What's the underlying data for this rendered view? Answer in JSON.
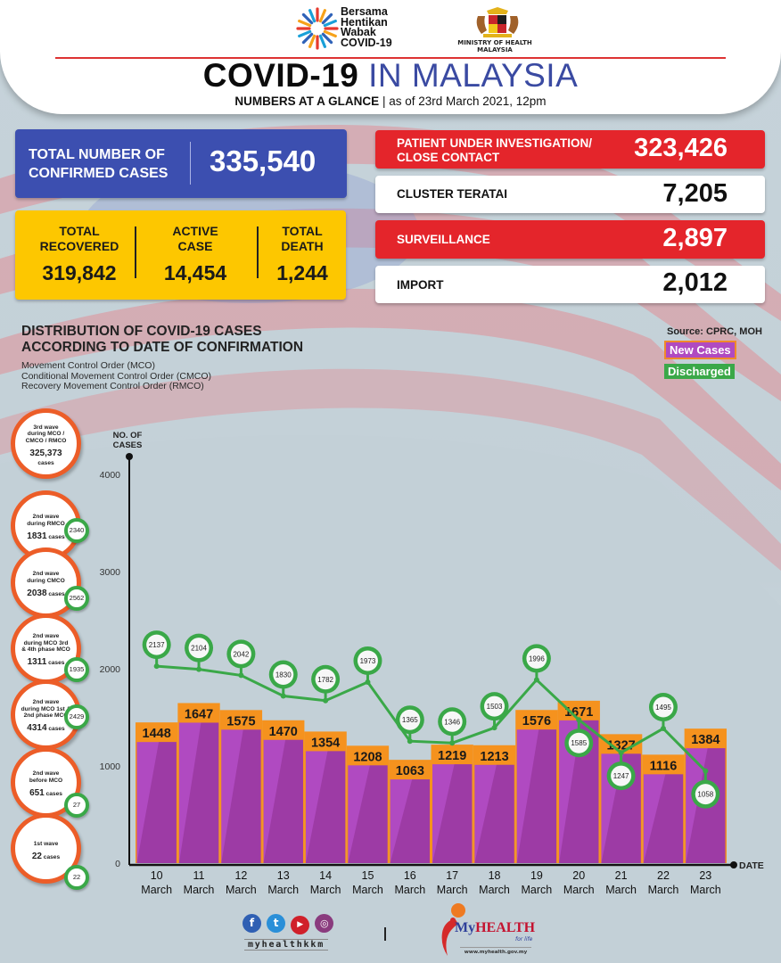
{
  "header": {
    "campaign_lines": [
      "Bersama",
      "Hentikan",
      "Wabak",
      "COVID-19"
    ],
    "ministry_lines": [
      "MINISTRY OF HEALTH",
      "MALAYSIA"
    ],
    "title_dark": "COVID-19",
    "title_blue": "IN MALAYSIA",
    "subtitle_bold": "NUMBERS AT A GLANCE",
    "subtitle_rest": "as of 23rd March 2021, 12pm"
  },
  "stats": {
    "confirmed": {
      "label_lines": [
        "TOTAL NUMBER OF",
        "CONFIRMED CASES"
      ],
      "value": "335,540"
    },
    "recovered": {
      "label_lines": [
        "TOTAL",
        "RECOVERED"
      ],
      "value": "319,842"
    },
    "active": {
      "label_lines": [
        "ACTIVE",
        "CASE"
      ],
      "value": "14,454"
    },
    "death": {
      "label_lines": [
        "TOTAL",
        "DEATH"
      ],
      "value": "1,244"
    },
    "right": [
      {
        "label_lines": [
          "PATIENT UNDER INVESTIGATION/",
          "CLOSE CONTACT"
        ],
        "value": "323,426",
        "style": "red"
      },
      {
        "label_lines": [
          "CLUSTER TERATAI"
        ],
        "value": "7,205",
        "style": "white"
      },
      {
        "label_lines": [
          "SURVEILLANCE"
        ],
        "value": "2,897",
        "style": "red"
      },
      {
        "label_lines": [
          "IMPORT"
        ],
        "value": "2,012",
        "style": "white"
      }
    ]
  },
  "distribution": {
    "title_lines": [
      "DISTRIBUTION OF COVID-19 CASES",
      "ACCORDING TO DATE OF CONFIRMATION"
    ],
    "notes": [
      "Movement Control Order (MCO)",
      "Conditional Movement Control Order (CMCO)",
      "Recovery Movement Control Order (RMCO)"
    ],
    "source": "Source: CPRC, MOH",
    "legend": {
      "new_cases": "New Cases",
      "discharged": "Discharged"
    }
  },
  "waves": [
    {
      "title_lines": [
        "3rd wave",
        "during MCO /",
        "CMCO / RMCO"
      ],
      "cases": "325,373",
      "cases_suffix": "cases",
      "separate_line": true,
      "discharged": null
    },
    {
      "title_lines": [
        "2nd wave",
        "during RMCO"
      ],
      "cases": "1831",
      "cases_suffix": "cases",
      "separate_line": false,
      "discharged": "2340"
    },
    {
      "title_lines": [
        "2nd wave",
        "during CMCO"
      ],
      "cases": "2038",
      "cases_suffix": "cases",
      "separate_line": false,
      "discharged": "2562"
    },
    {
      "title_lines": [
        "2nd wave",
        "during MCO 3rd",
        "& 4th phase MCO"
      ],
      "cases": "1311",
      "cases_suffix": "cases",
      "separate_line": false,
      "discharged": "1935"
    },
    {
      "title_lines": [
        "2nd wave",
        "during MCO 1st &",
        "2nd phase MCO"
      ],
      "cases": "4314",
      "cases_suffix": "cases",
      "separate_line": false,
      "discharged": "2429"
    },
    {
      "title_lines": [
        "2nd wave",
        "before MCO"
      ],
      "cases": "651",
      "cases_suffix": "cases",
      "separate_line": false,
      "discharged": "27"
    },
    {
      "title_lines": [
        "1st wave"
      ],
      "cases": "22",
      "cases_suffix": "cases",
      "separate_line": false,
      "discharged": "22"
    }
  ],
  "chart_data": {
    "type": "bar",
    "title": "DISTRIBUTION OF COVID-19 CASES ACCORDING TO DATE OF CONFIRMATION",
    "ylabel_lines": [
      "NO. OF",
      "CASES"
    ],
    "xlabel": "DATE",
    "ylim": [
      0,
      4000
    ],
    "yticks": [
      0,
      1000,
      2000,
      3000,
      4000
    ],
    "categories": [
      [
        "10",
        "March"
      ],
      [
        "11",
        "March"
      ],
      [
        "12",
        "March"
      ],
      [
        "13",
        "March"
      ],
      [
        "14",
        "March"
      ],
      [
        "15",
        "March"
      ],
      [
        "16",
        "March"
      ],
      [
        "17",
        "March"
      ],
      [
        "18",
        "March"
      ],
      [
        "19",
        "March"
      ],
      [
        "20",
        "March"
      ],
      [
        "21",
        "March"
      ],
      [
        "22",
        "March"
      ],
      [
        "23",
        "March"
      ]
    ],
    "series": [
      {
        "name": "New Cases",
        "kind": "bar",
        "color": "#b04ac1",
        "cap_color": "#f5921e",
        "values": [
          1448,
          1647,
          1575,
          1470,
          1354,
          1208,
          1063,
          1219,
          1213,
          1576,
          1671,
          1327,
          1116,
          1384
        ]
      },
      {
        "name": "Discharged",
        "kind": "line",
        "color": "#3aa848",
        "values": [
          2137,
          2104,
          2042,
          1830,
          1782,
          1973,
          1365,
          1346,
          1503,
          1996,
          1585,
          1247,
          1495,
          1058
        ]
      }
    ],
    "grid": false,
    "legend": "top-right"
  },
  "footer": {
    "social_icons": [
      "facebook-icon",
      "twitter-icon",
      "youtube-icon",
      "instagram-icon"
    ],
    "handle": "myhealthkkm",
    "brand_my": "My",
    "brand_health": "HEALTH",
    "brand_tag": "for life",
    "url": "www.myhealth.gov.my"
  }
}
